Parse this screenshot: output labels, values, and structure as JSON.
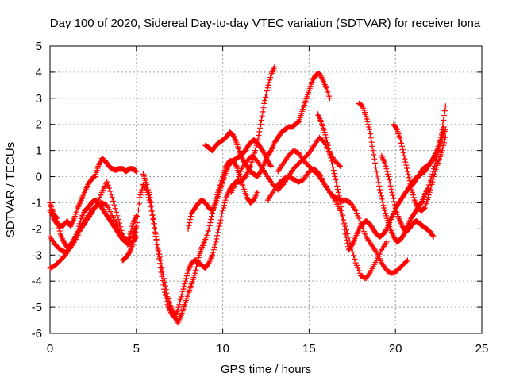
{
  "chart_data": {
    "type": "scatter",
    "title": "Day 100 of 2020, Sidereal Day-to-day VTEC variation (SDTVAR) for receiver Iona",
    "xlabel": "GPS time / hours",
    "ylabel": "SDTVAR / TECUs",
    "xlim": [
      0,
      25
    ],
    "ylim": [
      -6,
      5
    ],
    "x_ticks": [
      0,
      5,
      10,
      15,
      20,
      25
    ],
    "y_ticks": [
      -6,
      -5,
      -4,
      -3,
      -2,
      -1,
      0,
      1,
      2,
      3,
      4,
      5
    ],
    "x_tick_labels": [
      "0",
      "5",
      "10",
      "15",
      "20",
      "25"
    ],
    "y_tick_labels": [
      "-6",
      "-5",
      "-4",
      "-3",
      "-2",
      "-1",
      "0",
      "1",
      "2",
      "3",
      "4",
      "5"
    ],
    "grid": true,
    "marker": "+",
    "series_color": "#ff0000",
    "series": [
      {
        "x": [
          0.0,
          0.2,
          0.4,
          0.6,
          0.8,
          1.0,
          1.2,
          1.4,
          1.6,
          1.8,
          2.0,
          2.2,
          2.4,
          2.6,
          2.8,
          3.0,
          3.2,
          3.4,
          3.6,
          3.8,
          4.0,
          4.2,
          4.4,
          4.6,
          4.8,
          5.0
        ],
        "y": [
          -1.3,
          -1.6,
          -1.8,
          -1.9,
          -1.85,
          -1.7,
          -1.9,
          -1.6,
          -1.2,
          -0.9,
          -0.6,
          -0.3,
          -0.1,
          0.0,
          0.4,
          0.7,
          0.6,
          0.4,
          0.3,
          0.25,
          0.3,
          0.3,
          0.2,
          0.3,
          0.3,
          0.2
        ]
      },
      {
        "x": [
          0.0,
          0.3,
          0.6,
          0.9,
          1.2,
          1.5,
          1.8,
          2.1,
          2.4,
          2.7,
          3.0,
          3.3,
          3.6,
          3.9,
          4.2,
          4.5,
          4.8,
          5.0
        ],
        "y": [
          -2.3,
          -2.6,
          -2.8,
          -2.9,
          -2.7,
          -2.4,
          -2.0,
          -1.7,
          -1.4,
          -1.1,
          -0.6,
          -0.2,
          -0.8,
          -1.5,
          -2.2,
          -2.6,
          -2.5,
          -2.3
        ]
      },
      {
        "x": [
          0.0,
          0.3,
          0.6,
          0.9,
          1.2,
          1.5,
          1.8,
          2.1,
          2.4,
          2.7,
          3.0,
          3.3,
          3.6,
          3.9,
          4.2,
          4.5,
          4.8,
          5.0
        ],
        "y": [
          -3.5,
          -3.4,
          -3.2,
          -3.0,
          -2.7,
          -2.3,
          -1.9,
          -1.6,
          -1.3,
          -1.1,
          -1.0,
          -1.1,
          -1.5,
          -1.9,
          -2.3,
          -2.6,
          -2.2,
          -1.9
        ]
      },
      {
        "x": [
          0.0,
          0.2,
          0.4,
          0.6,
          0.8,
          1.0,
          1.2,
          1.4,
          1.6,
          1.8,
          2.0,
          2.2,
          2.4,
          2.6,
          2.8,
          3.0,
          3.2,
          3.4,
          3.6,
          3.8,
          4.0,
          4.2,
          4.4,
          4.6,
          4.8,
          5.0
        ],
        "y": [
          -1.0,
          -1.4,
          -1.6,
          -2.2,
          -2.5,
          -2.7,
          -2.6,
          -2.4,
          -2.1,
          -1.6,
          -1.3,
          -1.2,
          -1.0,
          -0.9,
          -1.0,
          -1.2,
          -1.4,
          -1.6,
          -1.8,
          -2.0,
          -2.2,
          -2.4,
          -2.5,
          -2.3,
          -1.8,
          -1.5
        ]
      },
      {
        "x": [
          4.2,
          4.4,
          4.6,
          4.8,
          5.0,
          5.2,
          5.4,
          5.6,
          5.8,
          6.0,
          6.2,
          6.4,
          6.6,
          6.8,
          7.0,
          7.2,
          7.4,
          7.6,
          7.8,
          8.0,
          8.2,
          8.4,
          8.6,
          8.8,
          9.0,
          9.2,
          9.4,
          9.6,
          9.8,
          10.0,
          10.2,
          10.4,
          10.6,
          10.8,
          11.0,
          11.2,
          11.4,
          11.6,
          11.8,
          12.0,
          12.2,
          12.4,
          12.6,
          12.8
        ],
        "y": [
          -3.2,
          -3.1,
          -2.9,
          -2.6,
          -2.0,
          -0.8,
          -0.3,
          -0.5,
          -1.0,
          -1.8,
          -2.6,
          -3.2,
          -3.9,
          -4.6,
          -5.0,
          -5.3,
          -5.6,
          -5.3,
          -4.9,
          -4.5,
          -4.1,
          -3.7,
          -3.1,
          -2.7,
          -2.4,
          -2.0,
          -1.4,
          -0.9,
          -0.4,
          0.0,
          0.4,
          0.6,
          0.6,
          0.7,
          0.8,
          0.9,
          1.1,
          1.3,
          1.4,
          1.3,
          1.1,
          0.9,
          0.6,
          0.4
        ]
      },
      {
        "x": [
          5.4,
          5.6,
          5.8,
          6.0,
          6.2,
          6.4,
          6.6,
          6.8,
          7.0,
          7.2,
          7.4,
          7.6,
          7.8,
          8.0,
          8.2,
          8.4,
          8.6,
          8.8,
          9.0,
          9.2,
          9.4,
          9.6,
          9.8,
          10.0,
          10.2,
          10.4,
          10.6,
          10.8,
          11.0,
          11.2,
          11.4,
          11.6,
          11.8,
          12.0,
          12.2,
          12.4,
          12.6,
          12.8,
          13.0
        ],
        "y": [
          0.1,
          -0.3,
          -0.8,
          -1.6,
          -2.6,
          -3.5,
          -4.3,
          -4.9,
          -5.2,
          -5.4,
          -5.1,
          -4.6,
          -4.1,
          -3.6,
          -3.3,
          -3.2,
          -3.3,
          -3.4,
          -3.5,
          -3.3,
          -3.0,
          -2.5,
          -1.9,
          -1.3,
          -0.8,
          -0.5,
          -0.3,
          -0.2,
          -0.2,
          -0.1,
          0.1,
          0.4,
          0.8,
          1.3,
          2.0,
          2.8,
          3.4,
          3.9,
          4.2
        ]
      },
      {
        "x": [
          8.0,
          8.2,
          8.4,
          8.6,
          8.8,
          9.0,
          9.2,
          9.4,
          9.6,
          9.8,
          10.0,
          10.2,
          10.4,
          10.6,
          10.8,
          11.0,
          11.2,
          11.4,
          11.6,
          11.8,
          12.0
        ],
        "y": [
          -2.0,
          -1.4,
          -1.2,
          -1.0,
          -0.9,
          -1.0,
          -1.2,
          -1.3,
          -1.0,
          -0.6,
          -0.2,
          0.2,
          0.5,
          0.6,
          0.4,
          0.0,
          -0.4,
          -0.8,
          -1.0,
          -0.9,
          -0.6
        ]
      },
      {
        "x": [
          9.0,
          9.2,
          9.4,
          9.6,
          9.8,
          10.0,
          10.2,
          10.4,
          10.6,
          10.8,
          11.0,
          11.2,
          11.4,
          11.6,
          11.8,
          12.0,
          12.2,
          12.4,
          12.6,
          12.8,
          13.0,
          13.2,
          13.4,
          13.6,
          13.8,
          14.0,
          14.2,
          14.4,
          14.6,
          14.8,
          15.0,
          15.2,
          15.4,
          15.6,
          15.8,
          16.0,
          16.2
        ],
        "y": [
          1.2,
          1.1,
          1.0,
          1.2,
          1.3,
          1.4,
          1.5,
          1.7,
          1.6,
          1.3,
          0.9,
          0.6,
          0.4,
          0.2,
          0.1,
          0.0,
          0.2,
          0.5,
          0.8,
          1.0,
          1.3,
          1.5,
          1.7,
          1.8,
          1.9,
          1.9,
          2.0,
          2.1,
          2.5,
          2.9,
          3.3,
          3.7,
          3.9,
          3.95,
          3.7,
          3.4,
          3.0
        ]
      },
      {
        "x": [
          10.5,
          10.8,
          11.1,
          11.4,
          11.7,
          12.0,
          12.3,
          12.6,
          12.9,
          13.2,
          13.5,
          13.8,
          14.1,
          14.4,
          14.7,
          15.0,
          15.3,
          15.6,
          15.9,
          16.2,
          16.5,
          16.8
        ],
        "y": [
          -0.6,
          -0.2,
          0.3,
          0.6,
          0.8,
          0.6,
          0.3,
          0.0,
          -0.3,
          -0.5,
          -0.3,
          0.0,
          0.3,
          0.5,
          0.7,
          0.9,
          1.2,
          1.5,
          1.3,
          0.9,
          0.6,
          0.4
        ]
      },
      {
        "x": [
          12.6,
          12.9,
          13.2,
          13.5,
          13.8,
          14.1,
          14.4,
          14.7,
          15.0,
          15.3,
          15.6,
          15.9,
          16.2,
          16.5,
          16.8,
          17.1,
          17.4,
          17.7,
          18.0,
          18.3,
          18.6,
          18.9,
          19.2,
          19.5,
          19.8,
          20.1,
          20.4,
          20.7
        ],
        "y": [
          -0.9,
          -0.6,
          -0.3,
          -0.1,
          0.0,
          -0.1,
          -0.2,
          -0.1,
          0.2,
          0.3,
          0.1,
          -0.3,
          -0.6,
          -0.8,
          -0.9,
          -0.9,
          -1.0,
          -1.3,
          -1.8,
          -2.3,
          -2.6,
          -2.9,
          -3.3,
          -3.6,
          -3.7,
          -3.6,
          -3.4,
          -3.2
        ]
      },
      {
        "x": [
          13.2,
          13.5,
          13.8,
          14.1,
          14.4,
          14.7,
          15.0,
          15.3,
          15.6,
          15.9,
          16.2,
          16.5,
          16.8,
          17.1,
          17.4,
          17.7,
          18.0,
          18.3,
          18.6,
          18.9,
          19.2,
          19.5
        ],
        "y": [
          0.2,
          0.5,
          0.8,
          1.0,
          0.9,
          0.6,
          0.4,
          0.2,
          0.0,
          -0.3,
          -0.6,
          -0.9,
          -1.3,
          -1.9,
          -2.6,
          -3.3,
          -3.8,
          -3.9,
          -3.6,
          -3.2,
          -2.8,
          -2.5
        ]
      },
      {
        "x": [
          15.5,
          15.7,
          15.9,
          16.1,
          16.3,
          16.5,
          16.7,
          16.9,
          17.1,
          17.3,
          17.5,
          17.7,
          17.9,
          18.1,
          18.3,
          18.5,
          18.7,
          18.9,
          19.1,
          19.3,
          19.5,
          19.7,
          19.9,
          20.1,
          20.3,
          20.5,
          20.7,
          20.9,
          21.1,
          21.3,
          21.5,
          21.7,
          21.9,
          22.1,
          22.3,
          22.5,
          22.7,
          22.9
        ],
        "y": [
          2.4,
          2.1,
          1.7,
          1.2,
          0.6,
          0.0,
          -0.6,
          -1.3,
          -2.2,
          -2.8,
          -2.6,
          -2.3,
          -2.0,
          -1.8,
          -1.7,
          -1.8,
          -2.0,
          -2.2,
          -2.3,
          -2.2,
          -2.0,
          -1.7,
          -1.4,
          -1.1,
          -0.9,
          -0.7,
          -0.5,
          -0.3,
          -0.1,
          0.0,
          0.1,
          0.2,
          0.4,
          0.6,
          0.8,
          1.1,
          1.5,
          1.8
        ]
      },
      {
        "x": [
          17.9,
          18.1,
          18.3,
          18.5,
          18.7,
          18.9,
          19.1,
          19.3,
          19.5,
          19.7,
          19.9,
          20.1,
          20.3,
          20.5,
          20.7,
          20.9,
          21.1,
          21.3,
          21.5,
          21.7,
          21.9,
          22.1,
          22.3,
          22.5,
          22.7,
          22.9
        ],
        "y": [
          2.8,
          2.7,
          2.3,
          1.8,
          1.0,
          0.2,
          -0.5,
          -1.1,
          -1.6,
          -2.0,
          -2.3,
          -2.5,
          -2.4,
          -2.2,
          -1.9,
          -1.6,
          -1.4,
          -1.2,
          -1.0,
          -0.7,
          -0.4,
          0.0,
          0.5,
          1.1,
          1.8,
          2.7
        ]
      },
      {
        "x": [
          19.9,
          20.1,
          20.3,
          20.5,
          20.7,
          20.9,
          21.1,
          21.3,
          21.5,
          21.7,
          21.9,
          22.1,
          22.3,
          22.5,
          22.7,
          22.9
        ],
        "y": [
          2.0,
          1.8,
          1.4,
          0.8,
          0.2,
          -0.4,
          -0.9,
          -1.2,
          -1.3,
          -1.2,
          -0.8,
          -0.3,
          0.2,
          0.6,
          1.0,
          1.5
        ]
      },
      {
        "x": [
          19.2,
          19.4,
          19.6,
          19.8,
          20.0,
          20.2,
          20.4,
          20.6,
          20.8,
          21.0,
          21.2,
          21.4,
          21.6,
          21.8,
          22.0,
          22.2
        ],
        "y": [
          0.8,
          0.5,
          0.0,
          -0.6,
          -1.2,
          -1.6,
          -1.9,
          -2.1,
          -2.0,
          -1.8,
          -1.7,
          -1.8,
          -1.9,
          -2.0,
          -2.1,
          -2.3
        ]
      },
      {
        "x": [
          20.8,
          21.0,
          21.2,
          21.4,
          21.6,
          21.8,
          22.0,
          22.2,
          22.4,
          22.6,
          22.8
        ],
        "y": [
          -0.4,
          -0.3,
          -0.1,
          0.1,
          0.3,
          0.4,
          0.5,
          0.7,
          1.0,
          1.4,
          1.9
        ]
      }
    ]
  }
}
